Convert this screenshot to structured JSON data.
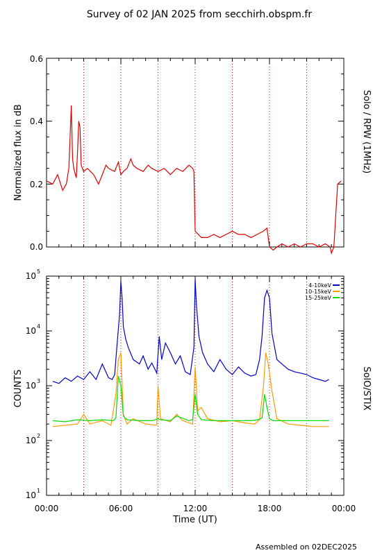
{
  "title": "Survey of 02 JAN 2025 from secchirh.obspm.fr",
  "footer": "Assembled on 02DEC2025",
  "x_ticks": [
    "00:00",
    "06:00",
    "12:00",
    "18:00",
    "00:00"
  ],
  "xlabel": "Time (UT)",
  "chart_data": [
    {
      "type": "line",
      "ylabel": "Normalized flux in dB",
      "right_label": "Solo / RPW (1MHz)",
      "ylim": [
        0,
        0.6
      ],
      "y_ticks": [
        "0.0",
        "0.2",
        "0.4",
        "0.6"
      ],
      "xlim_hours": [
        0,
        24
      ],
      "grid": "dotted red verticals every 3 h",
      "series": [
        {
          "color": "#dd0000",
          "x": [
            0,
            0.5,
            0.9,
            1.3,
            1.6,
            1.8,
            1.9,
            2.0,
            2.1,
            2.2,
            2.4,
            2.5,
            2.6,
            2.7,
            2.8,
            3.0,
            3.3,
            3.8,
            4.2,
            4.5,
            4.8,
            5.0,
            5.5,
            5.8,
            6.0,
            6.2,
            6.5,
            6.8,
            7.0,
            7.3,
            7.8,
            8.2,
            8.5,
            9.0,
            9.5,
            10.0,
            10.5,
            11.0,
            11.5,
            11.8,
            11.9,
            12.0,
            12.5,
            13.0,
            13.5,
            14.0,
            14.5,
            15.0,
            15.5,
            16.0,
            16.5,
            17.0,
            17.5,
            17.8,
            18.0,
            18.3,
            18.6,
            19.0,
            19.5,
            20.0,
            20.5,
            21.0,
            21.5,
            22.0,
            22.5,
            22.9,
            23.0,
            23.2,
            23.5,
            23.8
          ],
          "y": [
            0.21,
            0.2,
            0.23,
            0.18,
            0.2,
            0.25,
            0.35,
            0.45,
            0.28,
            0.25,
            0.22,
            0.3,
            0.4,
            0.38,
            0.26,
            0.24,
            0.25,
            0.23,
            0.2,
            0.23,
            0.26,
            0.25,
            0.24,
            0.27,
            0.23,
            0.24,
            0.25,
            0.28,
            0.26,
            0.25,
            0.24,
            0.26,
            0.25,
            0.24,
            0.25,
            0.23,
            0.25,
            0.24,
            0.26,
            0.25,
            0.24,
            0.05,
            0.03,
            0.03,
            0.04,
            0.03,
            0.04,
            0.05,
            0.04,
            0.04,
            0.03,
            0.04,
            0.05,
            0.06,
            0.0,
            -0.01,
            0.0,
            0.01,
            0.0,
            0.01,
            0.0,
            0.01,
            0.01,
            0.0,
            0.01,
            0.0,
            -0.02,
            0.0,
            0.2,
            0.21
          ]
        }
      ]
    },
    {
      "type": "line",
      "ylabel": "COUNTS",
      "right_label": "SolO/STIX",
      "y_scale": "log",
      "ylim": [
        10,
        100000
      ],
      "y_ticks": [
        "10",
        "10",
        "10",
        "10",
        "10"
      ],
      "y_tick_exponents": [
        "1",
        "2",
        "3",
        "4",
        "5"
      ],
      "xlim_hours": [
        0,
        24
      ],
      "legend_position": "top-right",
      "series": [
        {
          "name": "4-10keV",
          "color": "#0000cc",
          "x": [
            0.5,
            1.0,
            1.5,
            2.0,
            2.5,
            3.0,
            3.5,
            4.0,
            4.5,
            5.0,
            5.3,
            5.5,
            5.7,
            5.9,
            6.0,
            6.1,
            6.2,
            6.4,
            6.6,
            7.0,
            7.5,
            7.8,
            8.2,
            8.5,
            8.9,
            9.1,
            9.3,
            9.6,
            10.0,
            10.4,
            10.8,
            11.2,
            11.6,
            11.9,
            12.0,
            12.1,
            12.3,
            12.6,
            13.0,
            13.5,
            14.0,
            14.5,
            15.0,
            15.5,
            16.0,
            16.5,
            16.9,
            17.2,
            17.4,
            17.6,
            17.8,
            18.0,
            18.2,
            18.6,
            19.0,
            19.5,
            20.0,
            20.5,
            21.0,
            21.5,
            22.0,
            22.5,
            22.8
          ],
          "y": [
            1200,
            1100,
            1400,
            1200,
            1500,
            1300,
            1800,
            1300,
            2500,
            1400,
            1300,
            1600,
            6000,
            20000,
            80000,
            40000,
            12000,
            7000,
            5000,
            3000,
            2500,
            3500,
            2000,
            2600,
            1700,
            8000,
            3000,
            6000,
            4000,
            2500,
            3500,
            1800,
            1600,
            5000,
            90000,
            30000,
            8000,
            4000,
            2500,
            1800,
            3000,
            2000,
            1600,
            2200,
            1700,
            1500,
            1600,
            3000,
            8000,
            40000,
            55000,
            40000,
            9000,
            3000,
            2500,
            2000,
            1800,
            1700,
            1600,
            1400,
            1300,
            1200,
            1300
          ]
        },
        {
          "name": "10-15keV",
          "color": "#ff9900",
          "x": [
            0.5,
            1.5,
            2.5,
            3.0,
            3.5,
            4.5,
            5.2,
            5.6,
            5.8,
            6.0,
            6.2,
            6.5,
            7.0,
            8.0,
            8.9,
            9.0,
            9.2,
            10.0,
            10.5,
            11.0,
            11.8,
            12.0,
            12.2,
            12.5,
            13.0,
            14.0,
            15.0,
            16.0,
            16.8,
            17.2,
            17.5,
            17.7,
            17.9,
            18.2,
            18.6,
            19.5,
            20.5,
            21.5,
            22.5,
            22.8
          ],
          "y": [
            180,
            190,
            200,
            300,
            200,
            230,
            190,
            700,
            3000,
            4000,
            300,
            200,
            250,
            200,
            190,
            1000,
            250,
            220,
            300,
            230,
            200,
            2200,
            350,
            400,
            250,
            220,
            230,
            210,
            200,
            240,
            900,
            4000,
            2500,
            800,
            250,
            200,
            190,
            180,
            180,
            180
          ]
        },
        {
          "name": "15-25keV",
          "color": "#00dd00",
          "x": [
            0.5,
            1.5,
            2.5,
            3.5,
            4.5,
            5.4,
            5.6,
            5.8,
            6.0,
            6.2,
            6.5,
            7.5,
            8.5,
            9.0,
            9.2,
            10.0,
            10.5,
            11.5,
            11.8,
            12.0,
            12.2,
            12.5,
            13.5,
            14.5,
            15.5,
            16.5,
            17.1,
            17.4,
            17.6,
            17.8,
            18.0,
            18.3,
            19.0,
            20.0,
            21.0,
            22.0,
            22.8
          ],
          "y": [
            230,
            220,
            240,
            230,
            240,
            230,
            260,
            1500,
            1000,
            280,
            240,
            230,
            230,
            250,
            240,
            230,
            280,
            230,
            240,
            700,
            300,
            240,
            230,
            230,
            230,
            230,
            240,
            260,
            700,
            400,
            250,
            230,
            230,
            230,
            230,
            230,
            230
          ]
        }
      ]
    }
  ]
}
